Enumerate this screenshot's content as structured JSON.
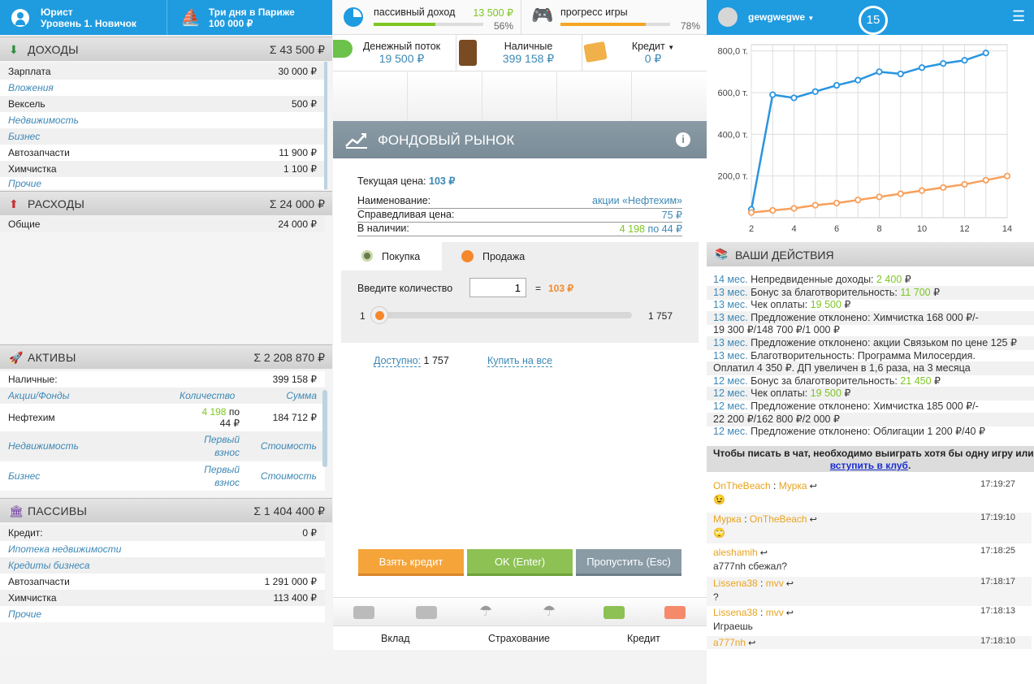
{
  "topbar": {
    "profession": "Юрист",
    "level": "Уровень 1. Новичок",
    "dream_title": "Три дня в Париже",
    "dream_cost": "100 000 ₽"
  },
  "stats": {
    "passive_label": "пассивный доход",
    "passive_value": "13 500 ₽",
    "passive_percent": "56%",
    "passive_fraction": 0.56,
    "progress_label": "прогресс игры",
    "progress_percent": "78%",
    "progress_fraction": 0.78
  },
  "user": {
    "name": "gewgwegwe",
    "turn": "15"
  },
  "cash": {
    "flow_label": "Денежный поток",
    "flow_value": "19 500 ₽",
    "cash_label": "Наличные",
    "cash_value": "399 158 ₽",
    "credit_label": "Кредит",
    "credit_value": "0 ₽"
  },
  "income": {
    "title": "ДОХОДЫ",
    "sum": "Σ 43 500 ₽",
    "rows": [
      {
        "label": "Зарплата",
        "value": "30 000 ₽"
      },
      {
        "label": "Вложения",
        "value": ""
      },
      {
        "label": "Вексель",
        "value": "500 ₽"
      },
      {
        "label": "Недвижимость",
        "value": ""
      },
      {
        "label": "Бизнес",
        "value": ""
      },
      {
        "label": "Автозапчасти",
        "value": "11 900 ₽"
      },
      {
        "label": "Химчистка",
        "value": "1 100 ₽"
      },
      {
        "label": "Прочие",
        "value": ""
      }
    ]
  },
  "expenses": {
    "title": "РАСХОДЫ",
    "sum": "Σ 24 000 ₽",
    "rows": [
      {
        "label": "Общие",
        "value": "24 000 ₽"
      }
    ]
  },
  "assets": {
    "title": "АКТИВЫ",
    "sum": "Σ 2 208 870 ₽",
    "cash_label": "Наличные:",
    "cash_value": "399 158 ₽",
    "stocks_header": "Акции/Фонды",
    "qty_header": "Количество",
    "sum_header": "Сумма",
    "stock_name": "Нефтехим",
    "stock_qty": "4 198",
    "stock_qty_by": "по",
    "stock_price": "44 ₽",
    "stock_sum": "184 712 ₽",
    "realty_header": "Недвижимость",
    "down_header": "Первый взнос",
    "cost_header": "Стоимость",
    "business_header": "Бизнес"
  },
  "liabilities": {
    "title": "ПАССИВЫ",
    "sum": "Σ 1 404 400 ₽",
    "rows": [
      {
        "label": "Кредит:",
        "value": "0 ₽"
      },
      {
        "label": "Ипотека недвижимости",
        "value": ""
      },
      {
        "label": "Кредиты бизнеса",
        "value": ""
      },
      {
        "label": "Автозапчасти",
        "value": "1 291 000 ₽"
      },
      {
        "label": "Химчистка",
        "value": "113 400 ₽"
      },
      {
        "label": "Прочие",
        "value": ""
      }
    ]
  },
  "market": {
    "title": "ФОНДОВЫЙ РЫНОК",
    "price_label": "Текущая цена:",
    "price_value": "103 ₽",
    "name_label": "Наименование:",
    "name_value": "акции «Нефтехим»",
    "fair_label": "Справедливая цена:",
    "fair_value": "75 ₽",
    "have_label": "В наличии:",
    "have_qty": "4 198",
    "have_by": "по 44 ₽",
    "tab_buy": "Покупка",
    "tab_sell": "Продажа",
    "qty_label": "Введите количество",
    "qty_value": "1",
    "eq": "=",
    "total": "103 ₽",
    "slider_min": "1",
    "slider_max": "1 757",
    "available_label": "Доступно:",
    "available_value": "1 757",
    "buy_all": "Купить на все",
    "btn_credit": "Взять кредит",
    "btn_ok": "OK (Enter)",
    "btn_skip": "Пропустить (Esc)"
  },
  "bottom": {
    "deposit": "Вклад",
    "insurance": "Страхование",
    "credit": "Кредит"
  },
  "chart_data": {
    "type": "line",
    "x": [
      2,
      3,
      4,
      5,
      6,
      7,
      8,
      9,
      10,
      11,
      12,
      13,
      14
    ],
    "y_ticks": [
      "200,0 т.",
      "400,0 т.",
      "600,0 т.",
      "800,0 т."
    ],
    "x_ticks": [
      "2",
      "4",
      "6",
      "8",
      "10",
      "12",
      "14"
    ],
    "ylim": [
      0,
      830
    ],
    "xlim": [
      2,
      14
    ],
    "series": [
      {
        "color": "#2a95e0",
        "points": [
          [
            2,
            40
          ],
          [
            3,
            590
          ],
          [
            4,
            575
          ],
          [
            5,
            605
          ],
          [
            6,
            635
          ],
          [
            7,
            660
          ],
          [
            8,
            700
          ],
          [
            9,
            690
          ],
          [
            10,
            720
          ],
          [
            11,
            740
          ],
          [
            12,
            755
          ],
          [
            13,
            790
          ]
        ]
      },
      {
        "color": "#f7a05c",
        "points": [
          [
            2,
            25
          ],
          [
            3,
            35
          ],
          [
            4,
            45
          ],
          [
            5,
            60
          ],
          [
            6,
            70
          ],
          [
            7,
            85
          ],
          [
            8,
            100
          ],
          [
            9,
            115
          ],
          [
            10,
            130
          ],
          [
            11,
            145
          ],
          [
            12,
            160
          ],
          [
            13,
            180
          ],
          [
            14,
            200
          ]
        ]
      }
    ]
  },
  "actions": {
    "title": "ВАШИ ДЕЙСТВИЯ",
    "items": [
      {
        "m": "14 мес.",
        "t": "Непредвиденные доходы:",
        "v": "2 400",
        "c": " ₽"
      },
      {
        "m": "13 мес.",
        "t": "Бонус за благотворительность:",
        "v": "11 700",
        "c": " ₽"
      },
      {
        "m": "13 мес.",
        "t": "Чек оплаты:",
        "v": "19 500",
        "c": " ₽"
      },
      {
        "m": "13 мес.",
        "t": "Предложение отклонено: Химчистка 168 000 ₽/-",
        "v": "",
        "c": ""
      },
      {
        "m": "",
        "t": "19 300 ₽/148 700 ₽/1 000 ₽",
        "v": "",
        "c": ""
      },
      {
        "m": "13 мес.",
        "t": "Предложение отклонено: акции Связьком по цене 125 ₽",
        "v": "",
        "c": ""
      },
      {
        "m": "13 мес.",
        "t": "Благотворительность: Программа Милосердия.",
        "v": "",
        "c": ""
      },
      {
        "m": "",
        "t": "Оплатил 4 350 ₽. ДП увеличен в 1,6 раза, на 3 месяца",
        "v": "",
        "c": ""
      },
      {
        "m": "12 мес.",
        "t": "Бонус за благотворительность:",
        "v": "21 450",
        "c": " ₽"
      },
      {
        "m": "12 мес.",
        "t": "Чек оплаты:",
        "v": "19 500",
        "c": " ₽"
      },
      {
        "m": "12 мес.",
        "t": "Предложение отклонено: Химчистка 185 000 ₽/-",
        "v": "",
        "c": ""
      },
      {
        "m": "",
        "t": "22 200 ₽/162 800 ₽/2 000 ₽",
        "v": "",
        "c": ""
      },
      {
        "m": "12 мес.",
        "t": "Предложение отклонено: Облигации 1 200 ₽/40 ₽",
        "v": "",
        "c": ""
      }
    ],
    "chat_notice": "Чтобы писать в чат, необходимо выиграть хотя бы одну игру или",
    "chat_link": "вступить в клуб",
    "chat_dot": "."
  },
  "chat": [
    {
      "from": "OnTheBeach",
      "sep": ":",
      "to": "Мурка",
      "time": "17:19:27",
      "text": "😉"
    },
    {
      "from": "Мурка",
      "sep": ":",
      "to": "OnTheBeach",
      "time": "17:19:10",
      "text": "🙄"
    },
    {
      "from": "aleshamih",
      "sep": "",
      "to": "",
      "time": "17:18:25",
      "text": "a777nh сбежал?"
    },
    {
      "from": "Lissena38",
      "sep": ":",
      "to": "mvv",
      "time": "17:18:17",
      "text": "?"
    },
    {
      "from": "Lissena38",
      "sep": ":",
      "to": "mvv",
      "time": "17:18:13",
      "text": "Играешь"
    },
    {
      "from": "a777nh",
      "sep": "",
      "to": "",
      "time": "17:18:10",
      "text": ""
    }
  ]
}
